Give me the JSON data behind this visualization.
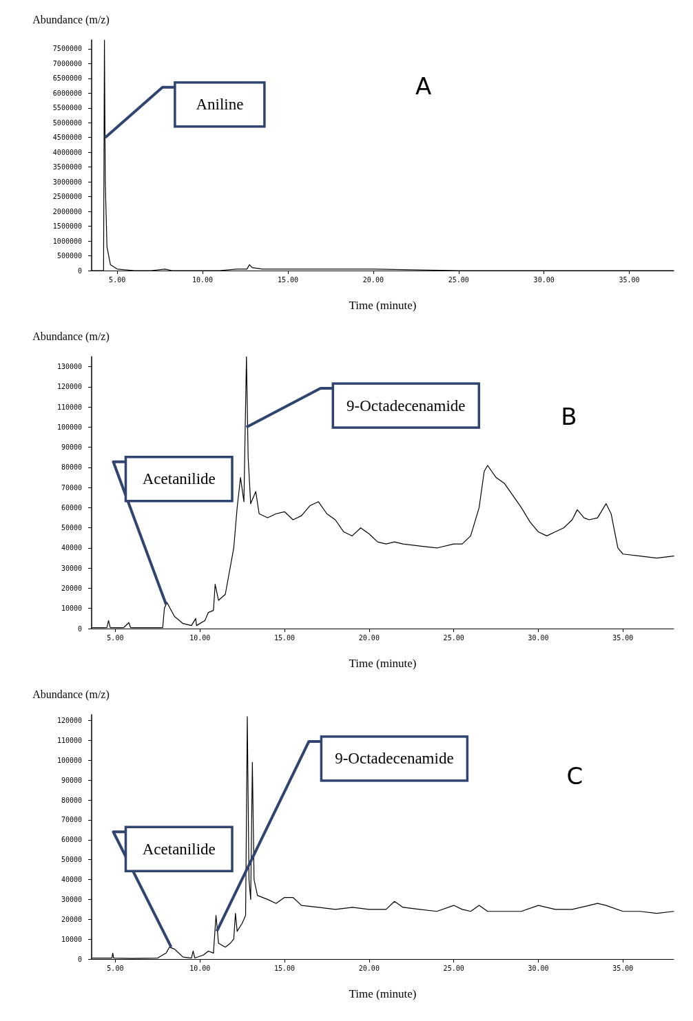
{
  "chart_data": [
    {
      "type": "line",
      "xlabel": "Time (minute)",
      "ylabel": "Abundance (m/z)",
      "grid": false,
      "marker": "none",
      "line_style": "solid",
      "xlim": [
        3.5,
        37.6
      ],
      "ylim": [
        0,
        7800000
      ],
      "xticks": [
        {
          "value": 5,
          "label": "5.00"
        },
        {
          "value": 10,
          "label": "10.00"
        },
        {
          "value": 15,
          "label": "15.00"
        },
        {
          "value": 20,
          "label": "20.00"
        },
        {
          "value": 25,
          "label": "25.00"
        },
        {
          "value": 30,
          "label": "30.00"
        },
        {
          "value": 35,
          "label": "35.00"
        }
      ],
      "yticks": [
        0,
        500000,
        1000000,
        1500000,
        2000000,
        2500000,
        3000000,
        3500000,
        4000000,
        4500000,
        5000000,
        5500000,
        6000000,
        6500000,
        7000000,
        7500000
      ],
      "series": [
        {
          "color": "#000000",
          "x": [
            3.5,
            4.2,
            4.25,
            4.3,
            4.4,
            4.6,
            5,
            6,
            7,
            7.8,
            8.2,
            9,
            10,
            11,
            12,
            12.6,
            12.75,
            12.9,
            13.5,
            15,
            20,
            25,
            30,
            37.6
          ],
          "values": [
            0,
            0,
            7800000,
            3000000,
            800000,
            200000,
            50000,
            0,
            0,
            50000,
            0,
            0,
            0,
            0,
            50000,
            50000,
            200000,
            100000,
            50000,
            50000,
            50000,
            0,
            0,
            0
          ]
        }
      ],
      "annotations": [
        "A",
        {
          "text": "Aniline",
          "x": 4.3,
          "y": 4500000
        }
      ]
    },
    {
      "type": "line",
      "xlabel": "Time (minute)",
      "ylabel": "Abundance (m/z)",
      "grid": false,
      "marker": "none",
      "line_style": "solid",
      "xlim": [
        3.6,
        38
      ],
      "ylim": [
        0,
        135000
      ],
      "xticks": [
        {
          "value": 5,
          "label": "5.00"
        },
        {
          "value": 10,
          "label": "10.00"
        },
        {
          "value": 15,
          "label": "15.00"
        },
        {
          "value": 20,
          "label": "20.00"
        },
        {
          "value": 25,
          "label": "25.00"
        },
        {
          "value": 30,
          "label": "30.00"
        },
        {
          "value": 35,
          "label": "35.00"
        }
      ],
      "yticks": [
        0,
        10000,
        20000,
        30000,
        40000,
        50000,
        60000,
        70000,
        80000,
        90000,
        100000,
        110000,
        120000,
        130000
      ],
      "series": [
        {
          "color": "#000000",
          "x": [
            3.6,
            4.5,
            4.6,
            4.7,
            5.5,
            5.8,
            5.9,
            7.8,
            7.9,
            8.05,
            8.5,
            9,
            9.5,
            9.75,
            9.8,
            10.3,
            10.5,
            10.8,
            10.9,
            11.1,
            11.5,
            12,
            12.2,
            12.4,
            12.6,
            12.75,
            12.85,
            13,
            13.3,
            13.5,
            14,
            14.5,
            15,
            15.5,
            16,
            16.5,
            17,
            17.5,
            18,
            18.5,
            19,
            19.5,
            20,
            20.5,
            21,
            21.5,
            22,
            23,
            24,
            25,
            25.5,
            26,
            26.5,
            26.8,
            27,
            27.5,
            28,
            28.5,
            29,
            29.5,
            30,
            30.5,
            31,
            31.5,
            32,
            32.3,
            32.7,
            33,
            33.5,
            34,
            34.3,
            34.7,
            35,
            36,
            37,
            38
          ],
          "values": [
            500,
            500,
            4000,
            500,
            500,
            3000,
            500,
            500,
            10000,
            13000,
            6000,
            2500,
            1500,
            5000,
            1500,
            4000,
            8000,
            9000,
            22000,
            14000,
            17000,
            40000,
            60000,
            75000,
            63000,
            135000,
            85000,
            62000,
            68000,
            57000,
            55000,
            57000,
            58000,
            54000,
            56000,
            61000,
            63000,
            57000,
            54000,
            48000,
            46000,
            50000,
            47000,
            43000,
            42000,
            43000,
            42000,
            41000,
            40000,
            42000,
            42000,
            46000,
            60000,
            78000,
            81000,
            75000,
            72000,
            66000,
            60000,
            53000,
            48000,
            46000,
            48000,
            50000,
            54000,
            59000,
            55000,
            54000,
            55000,
            62000,
            57000,
            40000,
            37000,
            36000,
            35000,
            36000
          ]
        }
      ],
      "annotations": [
        "B",
        {
          "text": "Acetanilide",
          "x": 8.0,
          "y": 12000
        },
        {
          "text": "9-Octadecenamide",
          "x": 12.75,
          "y": 100000
        }
      ]
    },
    {
      "type": "line",
      "xlabel": "Time (minute)",
      "ylabel": "Abundance (m/z)",
      "grid": false,
      "marker": "none",
      "line_style": "solid",
      "xlim": [
        3.6,
        38
      ],
      "ylim": [
        0,
        123000
      ],
      "xticks": [
        {
          "value": 5,
          "label": "5.00"
        },
        {
          "value": 10,
          "label": "10.00"
        },
        {
          "value": 15,
          "label": "15.00"
        },
        {
          "value": 20,
          "label": "20.00"
        },
        {
          "value": 25,
          "label": "25.00"
        },
        {
          "value": 30,
          "label": "30.00"
        },
        {
          "value": 35,
          "label": "35.00"
        }
      ],
      "yticks": [
        0,
        10000,
        20000,
        30000,
        40000,
        50000,
        60000,
        70000,
        80000,
        90000,
        100000,
        110000,
        120000
      ],
      "series": [
        {
          "color": "#000000",
          "x": [
            3.6,
            4.8,
            4.85,
            4.9,
            6,
            7.5,
            8,
            8.2,
            8.5,
            9,
            9.5,
            9.6,
            9.7,
            10.2,
            10.5,
            10.8,
            10.95,
            11.1,
            11.5,
            11.8,
            12,
            12.1,
            12.2,
            12.5,
            12.7,
            12.8,
            12.9,
            13,
            13.1,
            13.2,
            13.4,
            14,
            14.5,
            15,
            15.5,
            16,
            17,
            18,
            19,
            20,
            21,
            21.5,
            22,
            23,
            24,
            25,
            25.5,
            26,
            26.5,
            27,
            28,
            29,
            30,
            31,
            32,
            33,
            33.5,
            34,
            35,
            36,
            37,
            38
          ],
          "values": [
            500,
            500,
            3000,
            500,
            300,
            500,
            3000,
            6000,
            5000,
            1000,
            500,
            4000,
            500,
            2000,
            4000,
            3000,
            22000,
            8000,
            6000,
            8000,
            10000,
            23000,
            14000,
            18000,
            22000,
            122000,
            40000,
            30000,
            99000,
            40000,
            32000,
            30000,
            28000,
            31000,
            31000,
            27000,
            26000,
            25000,
            26000,
            25000,
            25000,
            29000,
            26000,
            25000,
            24000,
            27000,
            25000,
            24000,
            27000,
            24000,
            24000,
            24000,
            27000,
            25000,
            25000,
            27000,
            28000,
            27000,
            24000,
            24000,
            23000,
            24000
          ]
        }
      ],
      "annotations": [
        "C",
        {
          "text": "Acetanilide",
          "x": 8.3,
          "y": 6000
        },
        {
          "text": "9-Octadecenamide",
          "x": 11.0,
          "y": 14000
        }
      ]
    }
  ]
}
